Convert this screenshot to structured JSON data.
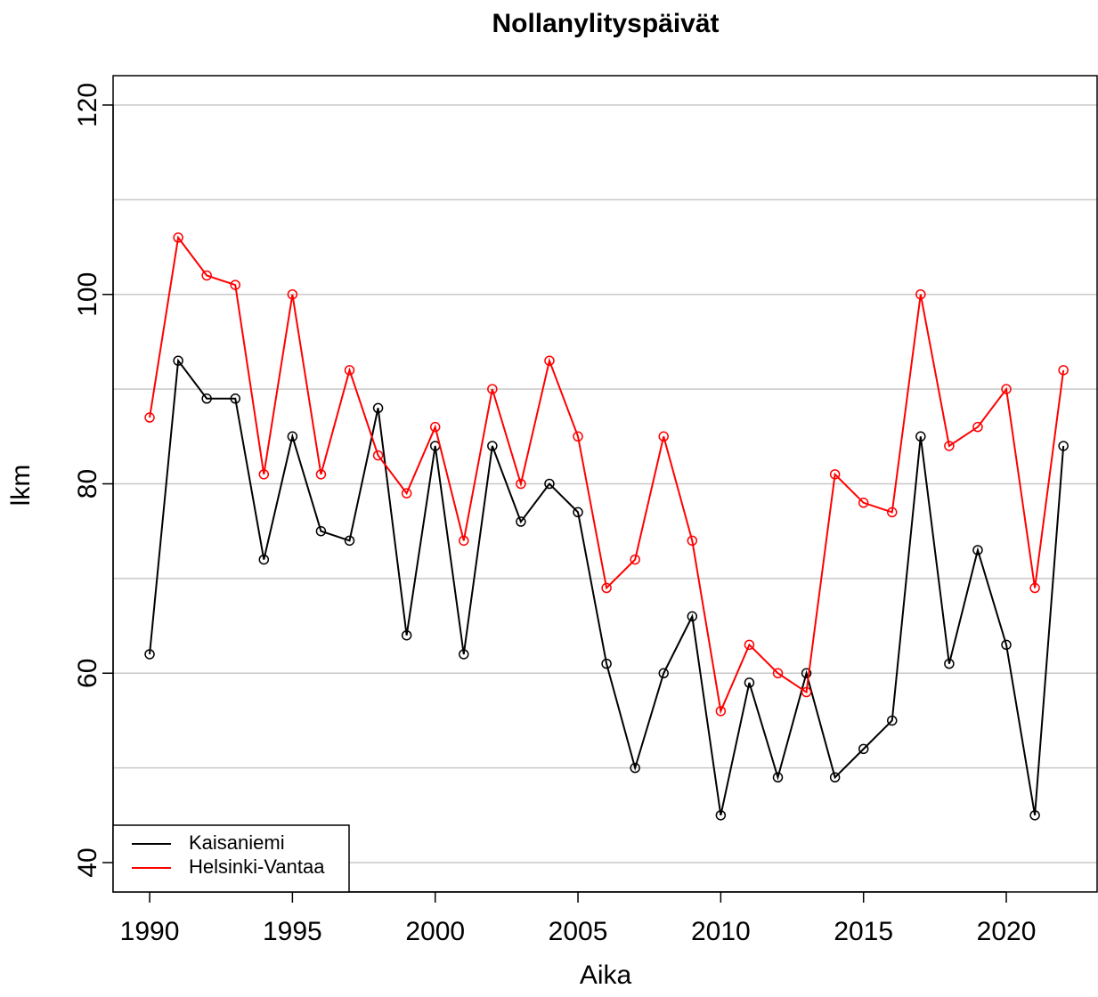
{
  "chart_data": {
    "type": "line",
    "title": "Nollanylityspäivät",
    "x_label": "Aika",
    "y_label": "lkm",
    "x": [
      1990,
      1991,
      1992,
      1993,
      1994,
      1995,
      1996,
      1997,
      1998,
      1999,
      2000,
      2001,
      2002,
      2003,
      2004,
      2005,
      2006,
      2007,
      2008,
      2009,
      2010,
      2011,
      2012,
      2013,
      2014,
      2015,
      2016,
      2017,
      2018,
      2019,
      2020,
      2021,
      2022
    ],
    "series": [
      {
        "name": "Kaisaniemi",
        "color": "#000000",
        "values": [
          62,
          93,
          89,
          89,
          72,
          85,
          75,
          74,
          88,
          64,
          84,
          62,
          84,
          76,
          80,
          77,
          61,
          50,
          60,
          66,
          45,
          59,
          49,
          60,
          49,
          52,
          55,
          85,
          61,
          73,
          63,
          45,
          84
        ]
      },
      {
        "name": "Helsinki-Vantaa",
        "color": "#ff0000",
        "values": [
          87,
          106,
          102,
          101,
          81,
          100,
          81,
          92,
          83,
          79,
          86,
          74,
          90,
          80,
          93,
          85,
          69,
          72,
          85,
          74,
          56,
          63,
          60,
          58,
          81,
          78,
          77,
          100,
          84,
          86,
          90,
          69,
          92
        ]
      }
    ],
    "xlim": [
      1988.72,
      2023.18
    ],
    "ylim": [
      36.9,
      123.1
    ],
    "xticks": [
      1990,
      1995,
      2000,
      2005,
      2010,
      2015,
      2020
    ],
    "yticks": [
      40,
      60,
      80,
      100,
      120
    ],
    "ygrid": [
      40,
      50,
      60,
      70,
      80,
      90,
      100,
      110,
      120
    ],
    "grid": true,
    "markers": "open-circle",
    "legend": "bottom-left"
  }
}
